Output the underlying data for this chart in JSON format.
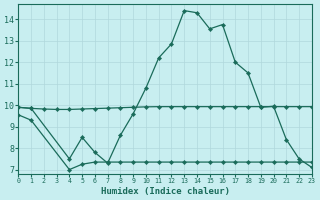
{
  "xlabel": "Humidex (Indice chaleur)",
  "x_main": [
    0,
    1,
    4,
    5,
    6,
    7,
    8,
    9,
    10,
    11,
    12,
    13,
    14,
    15,
    16,
    17,
    18,
    19,
    20,
    21,
    22,
    23
  ],
  "y_main": [
    9.9,
    9.85,
    7.5,
    8.5,
    7.8,
    7.3,
    8.6,
    9.6,
    10.8,
    12.2,
    12.85,
    14.4,
    14.3,
    13.55,
    13.75,
    12.0,
    11.5,
    9.9,
    9.95,
    8.4,
    7.5,
    7.1
  ],
  "x_lower": [
    0,
    1,
    4,
    5,
    6,
    7,
    8,
    9,
    10,
    11,
    12,
    13,
    14,
    15,
    16,
    17,
    18,
    19,
    20,
    21,
    22,
    23
  ],
  "y_lower": [
    9.55,
    9.3,
    7.0,
    7.25,
    7.35,
    7.35,
    7.35,
    7.35,
    7.35,
    7.35,
    7.35,
    7.35,
    7.35,
    7.35,
    7.35,
    7.35,
    7.35,
    7.35,
    7.35,
    7.35,
    7.35,
    7.35
  ],
  "x_flat": [
    0,
    1,
    2,
    3,
    4,
    5,
    6,
    7,
    8,
    9,
    10,
    11,
    12,
    13,
    14,
    15,
    16,
    17,
    18,
    19,
    20,
    21,
    22,
    23
  ],
  "y_flat": [
    9.9,
    9.85,
    9.82,
    9.8,
    9.8,
    9.82,
    9.84,
    9.86,
    9.88,
    9.9,
    9.92,
    9.93,
    9.93,
    9.93,
    9.93,
    9.93,
    9.93,
    9.93,
    9.93,
    9.93,
    9.93,
    9.93,
    9.93,
    9.93
  ],
  "color": "#1a6b5a",
  "bg_color": "#c8eef0",
  "grid_color": "#b0d8dc",
  "ylim": [
    6.8,
    14.7
  ],
  "xlim": [
    0,
    23
  ],
  "yticks": [
    7,
    8,
    9,
    10,
    11,
    12,
    13,
    14
  ],
  "xticks": [
    0,
    1,
    2,
    3,
    4,
    5,
    6,
    7,
    8,
    9,
    10,
    11,
    12,
    13,
    14,
    15,
    16,
    17,
    18,
    19,
    20,
    21,
    22,
    23
  ]
}
